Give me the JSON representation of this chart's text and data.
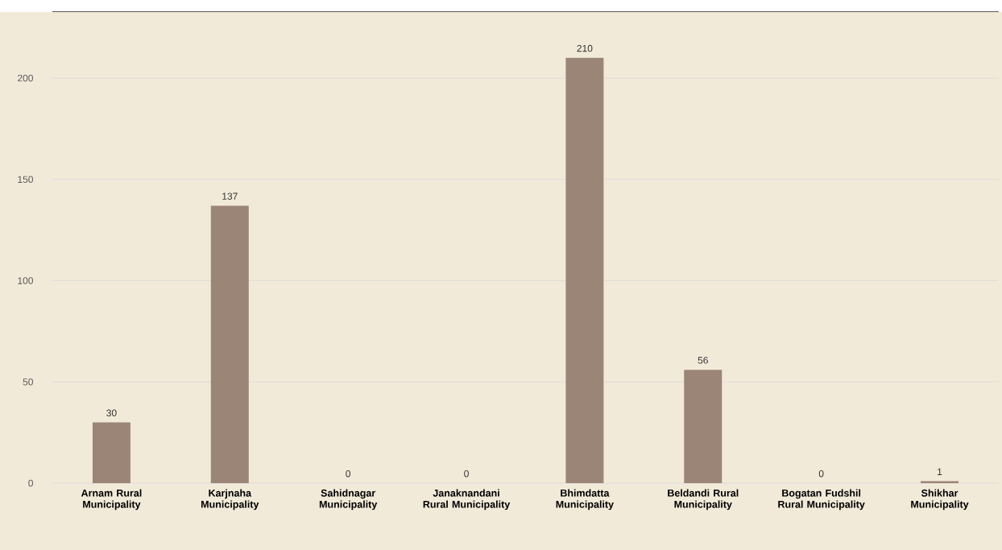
{
  "chart_data": {
    "type": "bar",
    "categories": [
      "Arnam Rural Municipality",
      "Karjnaha Municipality",
      "Sahidnagar Municipality",
      "Janaknandani Rural Municipality",
      "Bhimdatta Municipality",
      "Beldandi Rural Municipality",
      "Bogatan Fudshil Rural Municipality",
      "Shikhar Municipality"
    ],
    "values": [
      30,
      137,
      0,
      0,
      210,
      56,
      0,
      1
    ],
    "color": "#9b8577",
    "ylim": [
      0,
      233
    ],
    "yticks": [
      0,
      50,
      100,
      150,
      200
    ],
    "grid": "y",
    "data_labels": true
  }
}
